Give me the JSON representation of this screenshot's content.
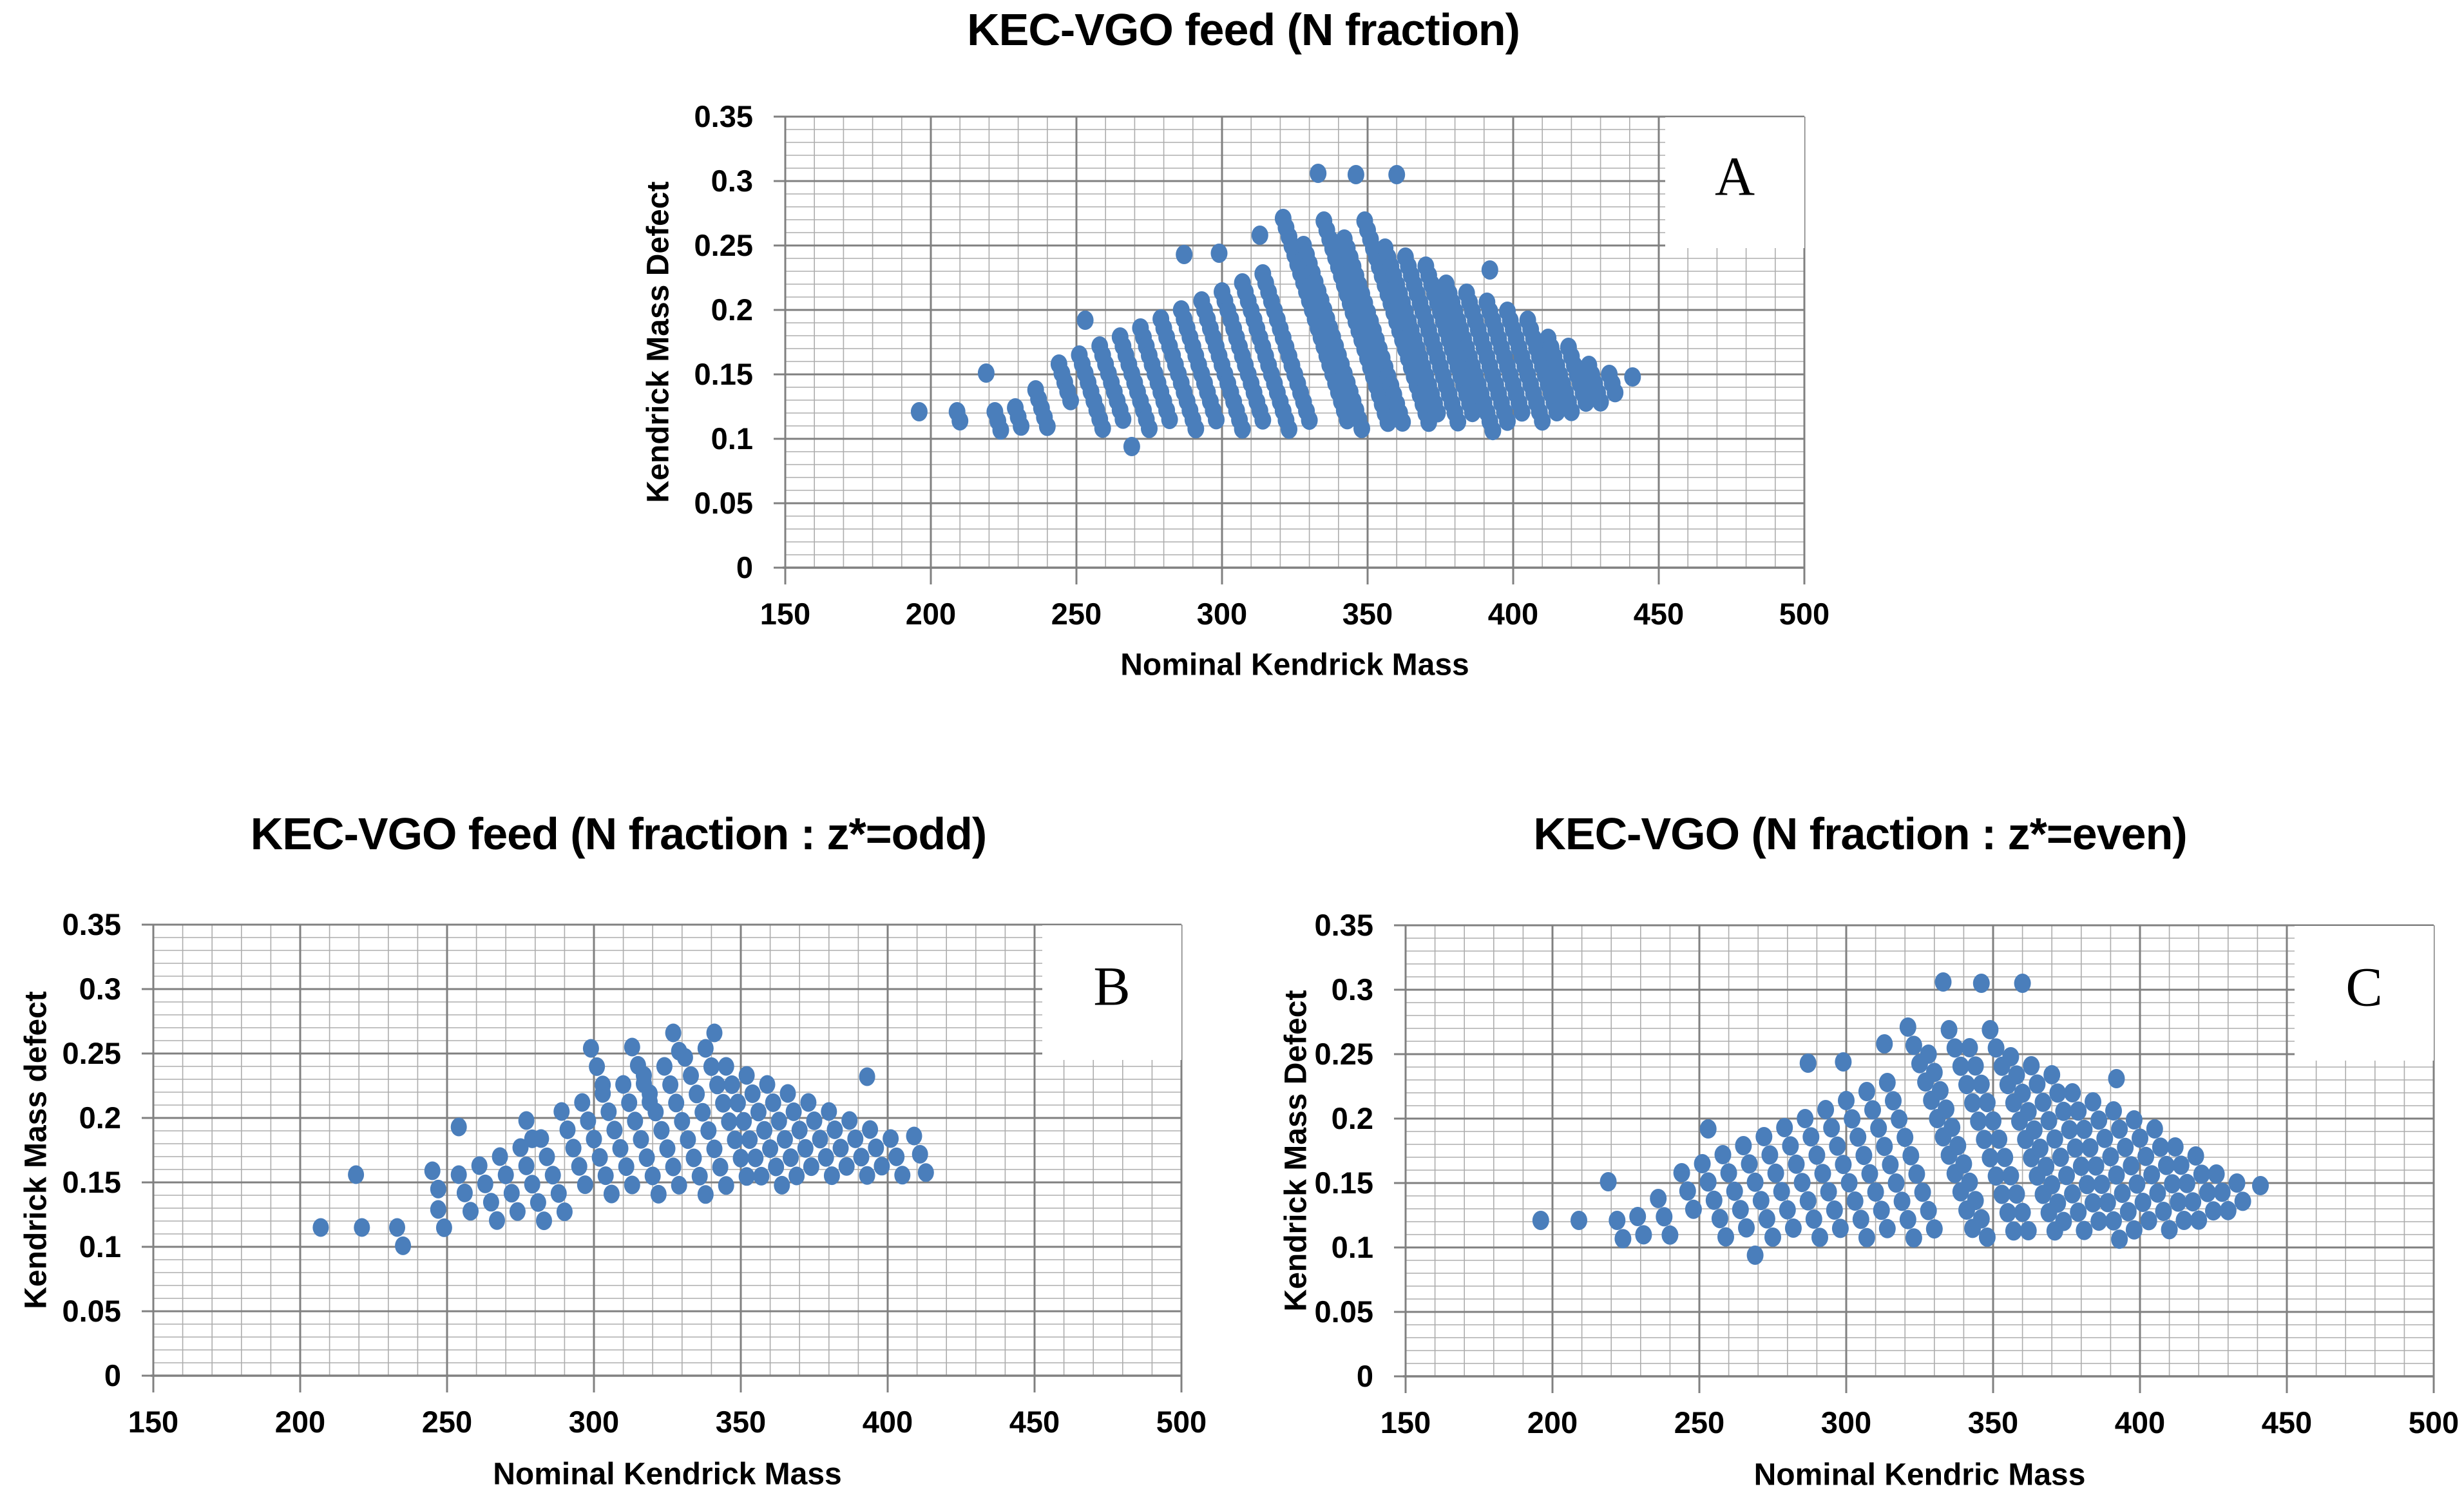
{
  "page_background": "#FFFFFF",
  "styles": {
    "marker_color": "#4A7EBB",
    "major_gridline_color": "#808080",
    "minor_gridline_color": "#ADADAD",
    "axis_line_color": "#808080",
    "text_color": "#000000",
    "panel_box_fill": "#FFFFFF",
    "panel_letter_color": "#000000"
  },
  "chart_data": [
    {
      "id": "A",
      "panel_letter": "A",
      "type": "scatter",
      "title": "KEC-VGO feed (N fraction)",
      "xlabel": "Nominal Kendrick Mass",
      "ylabel": "Kendrick Mass Defect",
      "xlim": [
        150,
        500
      ],
      "ylim": [
        0,
        0.35
      ],
      "x_major_step": 50,
      "x_minor_step": 10,
      "y_major_step": 0.05,
      "y_minor_step": 0.01,
      "grid": "major+minor",
      "legend": "none",
      "x_ticks": [
        {
          "label": "150",
          "value": 150
        },
        {
          "label": "200",
          "value": 200
        },
        {
          "label": "250",
          "value": 250
        },
        {
          "label": "300",
          "value": 300
        },
        {
          "label": "350",
          "value": 350
        },
        {
          "label": "400",
          "value": 400
        },
        {
          "label": "450",
          "value": 450
        },
        {
          "label": "500",
          "value": 500
        }
      ],
      "y_ticks": [
        {
          "label": "0",
          "value": 0
        },
        {
          "label": "0.05",
          "value": 0.05
        },
        {
          "label": "0.1",
          "value": 0.1
        },
        {
          "label": "0.15",
          "value": 0.15
        },
        {
          "label": "0.2",
          "value": 0.2
        },
        {
          "label": "0.25",
          "value": 0.25
        },
        {
          "label": "0.3",
          "value": 0.3
        },
        {
          "label": "0.35",
          "value": 0.35
        }
      ],
      "marker_color": "#4A7EBB",
      "homolog_step": {
        "dx": 1,
        "dy": -0.0071
      },
      "streaks": [
        [
          196,
          0.121,
          1
        ],
        [
          209,
          0.121,
          2
        ],
        [
          219,
          0.151,
          1
        ],
        [
          222,
          0.121,
          3
        ],
        [
          229,
          0.124,
          3
        ],
        [
          236,
          0.138,
          5
        ],
        [
          244,
          0.158,
          5
        ],
        [
          251,
          0.165,
          9
        ],
        [
          253,
          0.192,
          1
        ],
        [
          258,
          0.172,
          9
        ],
        [
          265,
          0.179,
          11
        ],
        [
          269,
          0.094,
          1
        ],
        [
          272,
          0.186,
          11
        ],
        [
          279,
          0.193,
          13
        ],
        [
          286,
          0.2,
          13
        ],
        [
          287,
          0.243,
          1
        ],
        [
          293,
          0.207,
          15
        ],
        [
          299,
          0.244,
          1
        ],
        [
          300,
          0.214,
          15
        ],
        [
          307,
          0.221,
          17
        ],
        [
          313,
          0.258,
          1
        ],
        [
          314,
          0.228,
          17
        ],
        [
          321,
          0.271,
          23
        ],
        [
          328,
          0.25,
          21
        ],
        [
          333,
          0.306,
          1
        ],
        [
          335,
          0.269,
          23
        ],
        [
          342,
          0.255,
          21
        ],
        [
          346,
          0.305,
          1
        ],
        [
          349,
          0.269,
          23
        ],
        [
          356,
          0.248,
          19
        ],
        [
          360,
          0.305,
          1
        ],
        [
          363,
          0.241,
          19
        ],
        [
          370,
          0.234,
          17
        ],
        [
          377,
          0.22,
          17
        ],
        [
          384,
          0.213,
          15
        ],
        [
          391,
          0.206,
          13
        ],
        [
          392,
          0.231,
          1
        ],
        [
          398,
          0.199,
          13
        ],
        [
          405,
          0.192,
          11
        ],
        [
          412,
          0.178,
          9
        ],
        [
          419,
          0.171,
          7
        ],
        [
          426,
          0.157,
          5
        ],
        [
          433,
          0.15,
          3
        ],
        [
          441,
          0.148,
          1
        ]
      ]
    },
    {
      "id": "B",
      "panel_letter": "B",
      "type": "scatter",
      "title": "KEC-VGO feed (N fraction : z*=odd)",
      "xlabel": "Nominal Kendrick Mass",
      "ylabel": "Kendrick Mass defect",
      "xlim": [
        150,
        500
      ],
      "ylim": [
        0,
        0.35
      ],
      "x_major_step": 50,
      "x_minor_step": 10,
      "y_major_step": 0.05,
      "y_minor_step": 0.01,
      "grid": "major+minor",
      "legend": "none",
      "x_ticks": [
        {
          "label": "150",
          "value": 150
        },
        {
          "label": "200",
          "value": 200
        },
        {
          "label": "250",
          "value": 250
        },
        {
          "label": "300",
          "value": 300
        },
        {
          "label": "350",
          "value": 350
        },
        {
          "label": "400",
          "value": 400
        },
        {
          "label": "450",
          "value": 450
        },
        {
          "label": "500",
          "value": 500
        }
      ],
      "y_ticks": [
        {
          "label": "0",
          "value": 0
        },
        {
          "label": "0.05",
          "value": 0.05
        },
        {
          "label": "0.1",
          "value": 0.1
        },
        {
          "label": "0.15",
          "value": 0.15
        },
        {
          "label": "0.2",
          "value": 0.2
        },
        {
          "label": "0.25",
          "value": 0.25
        },
        {
          "label": "0.3",
          "value": 0.3
        },
        {
          "label": "0.35",
          "value": 0.35
        }
      ],
      "marker_color": "#4A7EBB",
      "homolog_step": {
        "dx": 2,
        "dy": -0.0142
      },
      "streaks": [
        [
          207,
          0.115,
          1
        ],
        [
          219,
          0.156,
          1
        ],
        [
          221,
          0.115,
          1
        ],
        [
          233,
          0.115,
          2
        ],
        [
          245,
          0.159,
          2
        ],
        [
          247,
          0.129,
          2
        ],
        [
          254,
          0.193,
          1
        ],
        [
          254,
          0.156,
          3
        ],
        [
          261,
          0.163,
          4
        ],
        [
          268,
          0.17,
          4
        ],
        [
          275,
          0.177,
          5
        ],
        [
          277,
          0.198,
          2
        ],
        [
          282,
          0.184,
          5
        ],
        [
          289,
          0.205,
          5
        ],
        [
          296,
          0.212,
          6
        ],
        [
          299,
          0.254,
          3
        ],
        [
          303,
          0.219,
          6
        ],
        [
          310,
          0.226,
          7
        ],
        [
          313,
          0.255,
          4
        ],
        [
          317,
          0.233,
          7
        ],
        [
          324,
          0.24,
          8
        ],
        [
          327,
          0.266,
          2
        ],
        [
          331,
          0.247,
          8
        ],
        [
          338,
          0.254,
          8
        ],
        [
          341,
          0.266,
          1
        ],
        [
          345,
          0.24,
          7
        ],
        [
          352,
          0.233,
          7
        ],
        [
          359,
          0.226,
          6
        ],
        [
          366,
          0.219,
          5
        ],
        [
          373,
          0.212,
          5
        ],
        [
          380,
          0.205,
          4
        ],
        [
          387,
          0.198,
          4
        ],
        [
          393,
          0.232,
          1
        ],
        [
          394,
          0.191,
          3
        ],
        [
          401,
          0.184,
          3
        ],
        [
          409,
          0.186,
          3
        ]
      ]
    },
    {
      "id": "C",
      "panel_letter": "C",
      "type": "scatter",
      "title": "KEC-VGO (N fraction : z*=even)",
      "xlabel": "Nominal Kendric Mass",
      "ylabel": "Kendrick Mass Defect",
      "xlim": [
        150,
        500
      ],
      "ylim": [
        0,
        0.35
      ],
      "x_major_step": 50,
      "x_minor_step": 10,
      "y_major_step": 0.05,
      "y_minor_step": 0.01,
      "grid": "major+minor",
      "legend": "none",
      "x_ticks": [
        {
          "label": "150",
          "value": 150
        },
        {
          "label": "200",
          "value": 200
        },
        {
          "label": "250",
          "value": 250
        },
        {
          "label": "300",
          "value": 300
        },
        {
          "label": "350",
          "value": 350
        },
        {
          "label": "400",
          "value": 400
        },
        {
          "label": "450",
          "value": 450
        },
        {
          "label": "500",
          "value": 500
        }
      ],
      "y_ticks": [
        {
          "label": "0",
          "value": 0
        },
        {
          "label": "0.05",
          "value": 0.05
        },
        {
          "label": "0.1",
          "value": 0.1
        },
        {
          "label": "0.15",
          "value": 0.15
        },
        {
          "label": "0.2",
          "value": 0.2
        },
        {
          "label": "0.25",
          "value": 0.25
        },
        {
          "label": "0.3",
          "value": 0.3
        },
        {
          "label": "0.35",
          "value": 0.35
        }
      ],
      "marker_color": "#4A7EBB",
      "homolog_step": {
        "dx": 2,
        "dy": -0.0142
      },
      "streaks": [
        [
          196,
          0.121,
          1
        ],
        [
          209,
          0.121,
          1
        ],
        [
          219,
          0.151,
          1
        ],
        [
          222,
          0.121,
          2
        ],
        [
          229,
          0.124,
          2
        ],
        [
          236,
          0.138,
          3
        ],
        [
          244,
          0.158,
          3
        ],
        [
          251,
          0.165,
          5
        ],
        [
          253,
          0.192,
          1
        ],
        [
          258,
          0.172,
          5
        ],
        [
          265,
          0.179,
          6
        ],
        [
          269,
          0.094,
          1
        ],
        [
          272,
          0.186,
          6
        ],
        [
          279,
          0.193,
          7
        ],
        [
          286,
          0.2,
          7
        ],
        [
          287,
          0.243,
          1
        ],
        [
          293,
          0.207,
          8
        ],
        [
          299,
          0.244,
          1
        ],
        [
          300,
          0.214,
          8
        ],
        [
          307,
          0.221,
          9
        ],
        [
          313,
          0.258,
          1
        ],
        [
          314,
          0.228,
          9
        ],
        [
          321,
          0.271,
          12
        ],
        [
          328,
          0.25,
          11
        ],
        [
          333,
          0.306,
          1
        ],
        [
          335,
          0.269,
          12
        ],
        [
          342,
          0.255,
          11
        ],
        [
          346,
          0.305,
          1
        ],
        [
          349,
          0.269,
          12
        ],
        [
          356,
          0.248,
          10
        ],
        [
          360,
          0.305,
          1
        ],
        [
          363,
          0.241,
          10
        ],
        [
          370,
          0.234,
          9
        ],
        [
          377,
          0.22,
          9
        ],
        [
          384,
          0.213,
          8
        ],
        [
          391,
          0.206,
          7
        ],
        [
          392,
          0.231,
          1
        ],
        [
          398,
          0.199,
          7
        ],
        [
          405,
          0.192,
          6
        ],
        [
          412,
          0.178,
          5
        ],
        [
          419,
          0.171,
          4
        ],
        [
          426,
          0.157,
          3
        ],
        [
          433,
          0.15,
          2
        ],
        [
          441,
          0.148,
          1
        ]
      ]
    }
  ]
}
